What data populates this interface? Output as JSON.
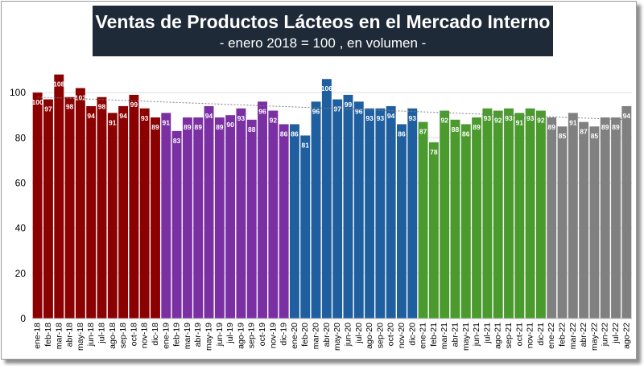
{
  "chart_data": {
    "type": "bar",
    "title": "Ventas de Productos Lácteos en el Mercado Interno",
    "subtitle": "- enero 2018 = 100 , en volumen -",
    "xlabel": "",
    "ylabel": "",
    "ylim": [
      0,
      110
    ],
    "yticks": [
      0,
      20,
      40,
      60,
      80,
      100
    ],
    "grid": true,
    "categories": [
      "ene-18",
      "feb-18",
      "mar-18",
      "abr-18",
      "may-18",
      "jun-18",
      "jul-18",
      "ago-18",
      "sep-18",
      "oct-18",
      "nov-18",
      "dic-18",
      "ene-19",
      "feb-19",
      "mar-19",
      "abr-19",
      "may-19",
      "jun-19",
      "jul-19",
      "ago-19",
      "sep-19",
      "oct-19",
      "nov-19",
      "dic-19",
      "ene-20",
      "feb-20",
      "mar-20",
      "abr-20",
      "may-20",
      "jun-20",
      "jul-20",
      "ago-20",
      "sep-20",
      "oct-20",
      "nov-20",
      "dic-20",
      "ene-21",
      "feb-21",
      "mar-21",
      "abr-21",
      "may-21",
      "jun-21",
      "jul-21",
      "ago-21",
      "sep-21",
      "oct-21",
      "nov-21",
      "dic-21",
      "ene-22",
      "feb-22",
      "mar-22",
      "abr-22",
      "may-22",
      "jun-22",
      "jul-22",
      "ago-22"
    ],
    "values": [
      100,
      97,
      108,
      98,
      102,
      94,
      98,
      91,
      94,
      99,
      93,
      89,
      91,
      83,
      89,
      89,
      94,
      89,
      90,
      93,
      88,
      96,
      92,
      86,
      86,
      81,
      96,
      106,
      97,
      99,
      96,
      93,
      93,
      94,
      86,
      93,
      87,
      78,
      92,
      88,
      86,
      89,
      93,
      92,
      93,
      91,
      93,
      92,
      89,
      85,
      91,
      87,
      85,
      89,
      89,
      94
    ],
    "value_labels": [
      "100",
      "97",
      "108",
      "98",
      "102",
      "94",
      "98",
      "91",
      "94",
      "99",
      "93",
      "89",
      "91",
      "83",
      "89",
      "89",
      "94",
      "89",
      "90",
      "93",
      "88",
      "96",
      "92",
      "86",
      "86",
      "81",
      "96",
      "106",
      "97",
      "99",
      "96",
      "93",
      "93",
      "94",
      "86",
      "93",
      "87",
      "78",
      "92",
      "88",
      "86",
      "89",
      "93",
      "92",
      "93",
      "91",
      "93",
      "92",
      "89",
      "85",
      "91",
      "87",
      "85",
      "89",
      "89",
      "94"
    ],
    "year_colors": [
      "#8b0000",
      "#7a2fa3",
      "#1f5fa0",
      "#4a9a2e",
      "#808080"
    ],
    "trendline": {
      "from": 98,
      "to": 88,
      "color": "#808080",
      "style": "dotted"
    }
  }
}
